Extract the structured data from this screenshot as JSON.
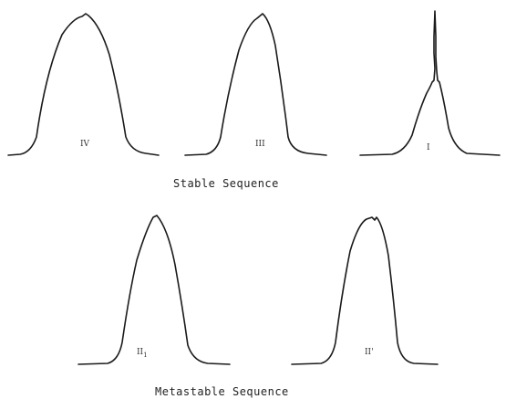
{
  "panels": [
    {
      "id": "iv",
      "label": "IV",
      "sub": ""
    },
    {
      "id": "iii",
      "label": "III",
      "sub": ""
    },
    {
      "id": "i",
      "label": "I",
      "sub": ""
    },
    {
      "id": "ii1",
      "label": "II",
      "sub": "1"
    },
    {
      "id": "iip",
      "label": "II'",
      "sub": ""
    }
  ],
  "captions": {
    "stable": "Stable Sequence",
    "metastable": "Metastable Sequence"
  }
}
